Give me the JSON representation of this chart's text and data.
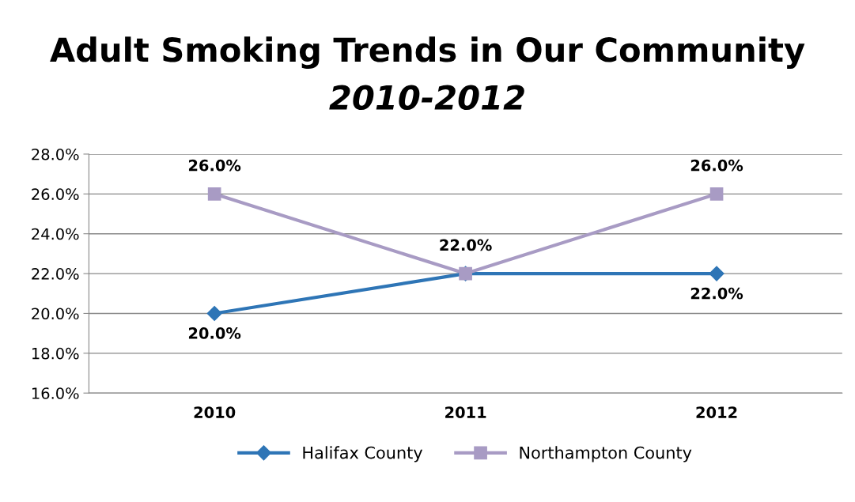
{
  "chart_data": {
    "type": "line",
    "title": "Adult Smoking Trends in Our Community",
    "subtitle": "2010-2012",
    "categories": [
      "2010",
      "2011",
      "2012"
    ],
    "series": [
      {
        "name": "Halifax County",
        "color": "#2e75b6",
        "marker": "diamond",
        "values": [
          20.0,
          22.0,
          22.0
        ],
        "value_labels": [
          "20.0%",
          null,
          "22.0%"
        ]
      },
      {
        "name": "Northampton County",
        "color": "#a89bc4",
        "marker": "square",
        "values": [
          26.0,
          22.0,
          26.0
        ],
        "value_labels": [
          "26.0%",
          "22.0%",
          "26.0%"
        ]
      }
    ],
    "ylim": [
      16,
      28
    ],
    "yticks": [
      {
        "value": 16,
        "label": "16.0%"
      },
      {
        "value": 18,
        "label": "18.0%"
      },
      {
        "value": 20,
        "label": "20.0%"
      },
      {
        "value": 22,
        "label": "22.0%"
      },
      {
        "value": 24,
        "label": "24.0%"
      },
      {
        "value": 26,
        "label": "26.0%"
      },
      {
        "value": 28,
        "label": "28.0%"
      }
    ],
    "grid": "y",
    "legend": "bottom",
    "line_style": "solid"
  }
}
